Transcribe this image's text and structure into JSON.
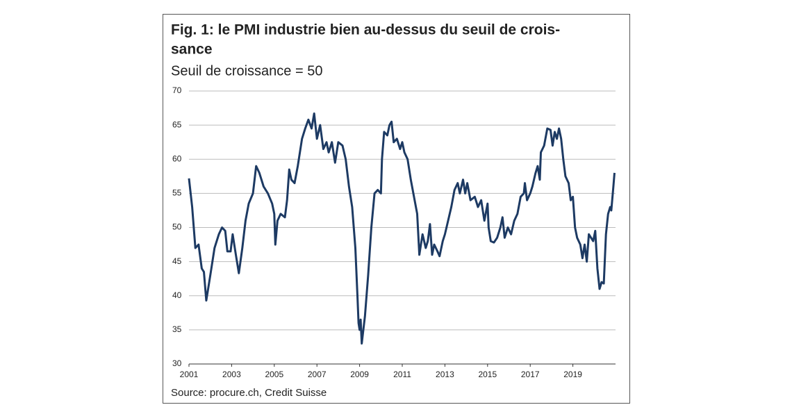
{
  "chart_data": {
    "type": "line",
    "title": [
      "Fig. 1: le PMI industrie bien au-dessus du seuil de crois-",
      "sance"
    ],
    "subtitle": "Seuil de croissance = 50",
    "source": "Source: procure.ch, Credit Suisse",
    "xlim": [
      2001,
      2021
    ],
    "xticks": [
      2001,
      2003,
      2005,
      2007,
      2009,
      2011,
      2013,
      2015,
      2017,
      2019
    ],
    "ylim": [
      30,
      70
    ],
    "yticks": [
      30,
      35,
      40,
      45,
      50,
      55,
      60,
      65,
      70
    ],
    "grid": true,
    "series": [
      {
        "name": "PMI",
        "color": "#1d3a63",
        "x": [
          2001.0,
          2001.15,
          2001.3,
          2001.45,
          2001.6,
          2001.7,
          2001.81,
          2002.0,
          2002.2,
          2002.4,
          2002.55,
          2002.7,
          2002.8,
          2002.95,
          2003.05,
          2003.2,
          2003.34,
          2003.5,
          2003.65,
          2003.8,
          2004.0,
          2004.15,
          2004.3,
          2004.5,
          2004.7,
          2004.9,
          2005.0,
          2005.05,
          2005.15,
          2005.3,
          2005.5,
          2005.6,
          2005.7,
          2005.8,
          2005.95,
          2006.1,
          2006.3,
          2006.45,
          2006.6,
          2006.75,
          2006.87,
          2007.0,
          2007.15,
          2007.3,
          2007.45,
          2007.55,
          2007.7,
          2007.85,
          2008.0,
          2008.2,
          2008.35,
          2008.5,
          2008.65,
          2008.8,
          2008.9,
          2008.95,
          2009.0,
          2009.05,
          2009.1,
          2009.25,
          2009.4,
          2009.55,
          2009.7,
          2009.85,
          2010.0,
          2010.05,
          2010.15,
          2010.3,
          2010.4,
          2010.5,
          2010.6,
          2010.75,
          2010.9,
          2011.0,
          2011.1,
          2011.25,
          2011.4,
          2011.55,
          2011.7,
          2011.8,
          2011.95,
          2012.1,
          2012.2,
          2012.3,
          2012.4,
          2012.5,
          2012.65,
          2012.75,
          2012.9,
          2013.0,
          2013.15,
          2013.3,
          2013.45,
          2013.6,
          2013.7,
          2013.85,
          2013.95,
          2014.05,
          2014.2,
          2014.4,
          2014.55,
          2014.7,
          2014.85,
          2015.0,
          2015.05,
          2015.15,
          2015.3,
          2015.45,
          2015.6,
          2015.7,
          2015.8,
          2015.95,
          2016.1,
          2016.25,
          2016.4,
          2016.55,
          2016.7,
          2016.75,
          2016.85,
          2017.0,
          2017.1,
          2017.25,
          2017.35,
          2017.45,
          2017.5,
          2017.65,
          2017.8,
          2017.95,
          2018.05,
          2018.15,
          2018.25,
          2018.35,
          2018.45,
          2018.55,
          2018.65,
          2018.8,
          2018.9,
          2019.0,
          2019.1,
          2019.2,
          2019.35,
          2019.45,
          2019.55,
          2019.65,
          2019.75,
          2019.85,
          2019.95,
          2020.05,
          2020.15,
          2020.25,
          2020.35,
          2020.45,
          2020.55,
          2020.65,
          2020.75,
          2020.8,
          2020.9,
          2020.95
        ],
        "values": [
          57.2,
          53,
          47,
          47.5,
          44,
          43.5,
          39.3,
          43,
          47,
          49,
          50,
          49.5,
          46.5,
          46.5,
          49,
          46,
          43.3,
          47,
          51,
          53.5,
          55,
          59,
          58,
          56,
          55,
          53.5,
          52,
          47.5,
          51,
          52,
          51.5,
          54,
          58.5,
          57,
          56.5,
          59,
          63,
          64.5,
          65.8,
          64.5,
          66.7,
          63,
          65,
          61.5,
          62.5,
          61,
          62.5,
          59.5,
          62.5,
          62,
          60,
          56,
          53,
          47,
          40,
          36,
          35,
          36.5,
          33,
          37,
          43,
          50,
          55,
          55.5,
          55,
          60,
          64,
          63.5,
          65,
          65.5,
          62.5,
          63,
          61.5,
          62.5,
          61,
          60,
          57,
          54.5,
          52,
          46,
          49,
          47,
          48,
          50.5,
          46,
          47.5,
          46.5,
          45.8,
          48,
          49,
          51,
          53,
          55.5,
          56.5,
          55,
          57,
          55,
          56.5,
          54,
          54.5,
          53,
          54,
          51,
          53.5,
          50,
          48,
          47.8,
          48.5,
          50,
          51.5,
          48.5,
          50,
          49,
          51,
          52,
          54.5,
          55,
          56.5,
          54,
          55,
          56,
          58,
          59,
          57,
          61,
          62,
          64.5,
          64.3,
          62,
          64,
          63,
          64.5,
          63,
          60,
          57.5,
          56.5,
          54,
          54.5,
          50,
          48.5,
          47.5,
          45.5,
          47.5,
          45,
          49,
          48.5,
          48,
          49.5,
          44,
          41,
          42,
          41.8,
          49,
          52,
          53,
          52.5,
          56,
          58
        ]
      }
    ]
  }
}
